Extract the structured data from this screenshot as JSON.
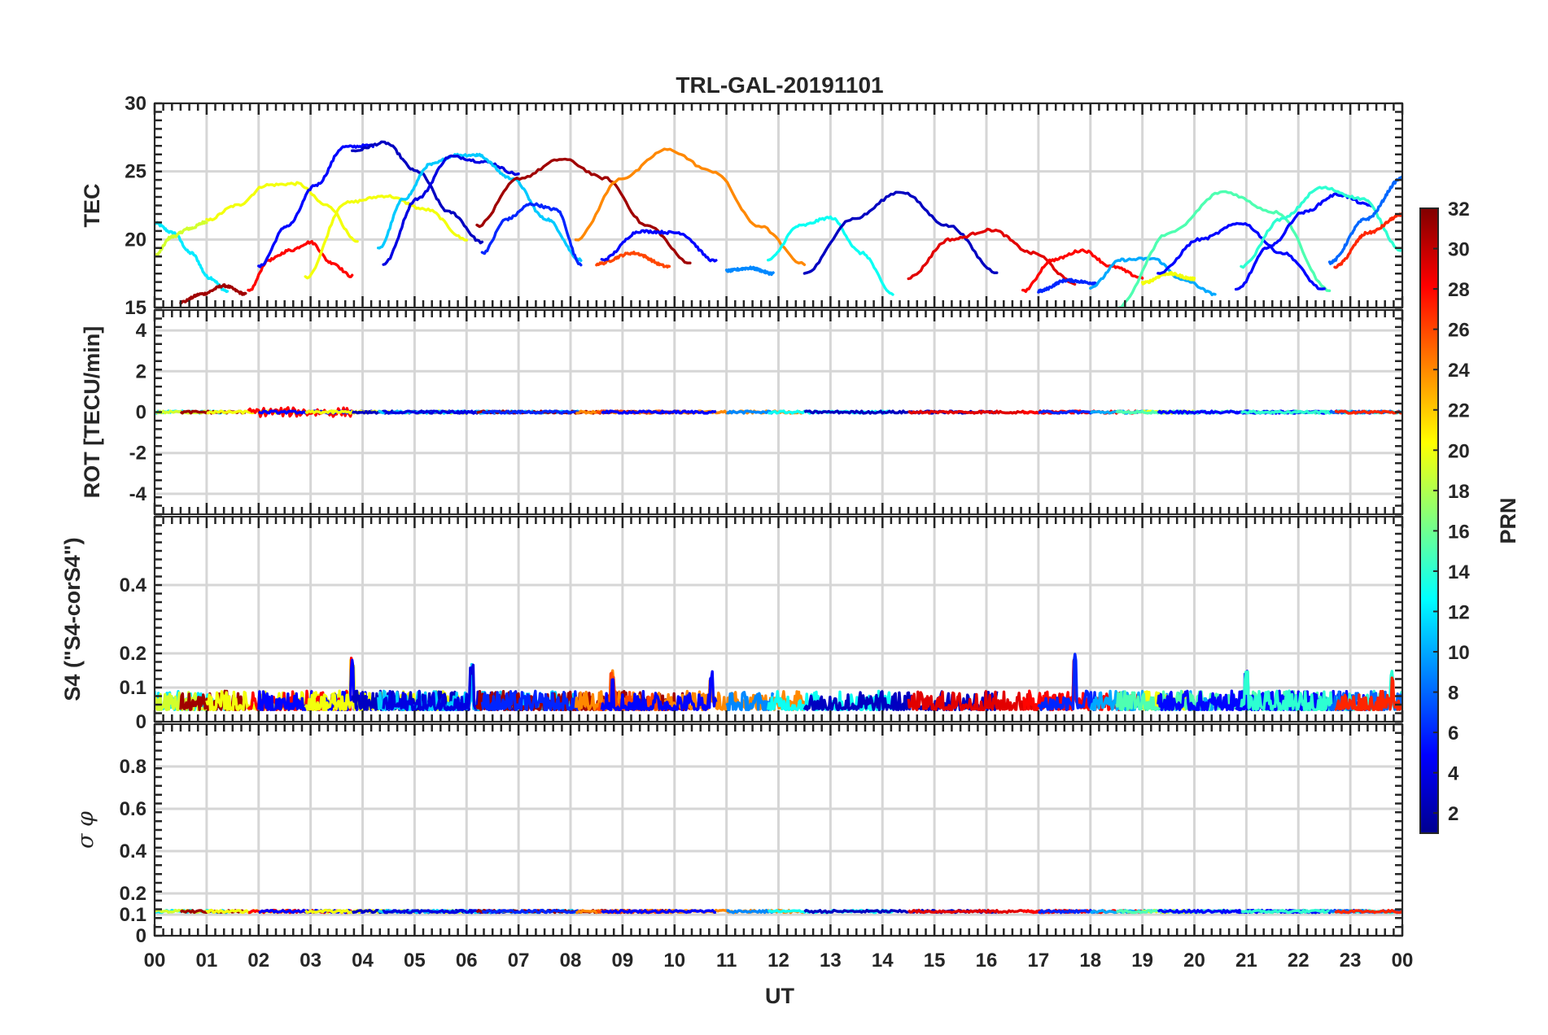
{
  "chart_data": {
    "type": "line",
    "title": "TRL-GAL-20191101",
    "xlabel": "UT",
    "x_ticks": [
      "00",
      "01",
      "02",
      "03",
      "04",
      "05",
      "06",
      "07",
      "08",
      "09",
      "10",
      "11",
      "12",
      "13",
      "14",
      "15",
      "16",
      "17",
      "18",
      "19",
      "20",
      "21",
      "22",
      "23",
      "00"
    ],
    "xlim": [
      0,
      24
    ],
    "colorbar": {
      "label": "PRN",
      "range": [
        1,
        32
      ],
      "ticks": [
        2,
        4,
        6,
        8,
        10,
        12,
        14,
        16,
        18,
        20,
        22,
        24,
        26,
        28,
        30,
        32
      ]
    },
    "panels": [
      {
        "id": "tec",
        "ylabel": "TEC",
        "ylim": [
          15,
          30
        ],
        "yticks": [
          15,
          20,
          25,
          30
        ],
        "passes": [
          {
            "prn": 12,
            "t0": 0.0,
            "t1": 1.4,
            "values": [
              21.2,
              20.5,
              19.0,
              17.2,
              16.2
            ]
          },
          {
            "prn": 19,
            "t0": 0.0,
            "t1": 1.0,
            "values": [
              18.8,
              20.2,
              20.8,
              21.3
            ]
          },
          {
            "prn": 31,
            "t0": 0.5,
            "t1": 1.75,
            "values": [
              15.4,
              16.0,
              16.6,
              16.0
            ]
          },
          {
            "prn": 20,
            "t0": 1.0,
            "t1": 3.9,
            "values": [
              21.4,
              22.5,
              24.0,
              24.1,
              22.5,
              19.8
            ]
          },
          {
            "prn": 28,
            "t0": 1.8,
            "t1": 3.8,
            "values": [
              16.2,
              18.5,
              19.2,
              19.8,
              18.3,
              17.3
            ]
          },
          {
            "prn": 5,
            "t0": 2.0,
            "t1": 4.2,
            "values": [
              18.0,
              21.0,
              24.0,
              26.8,
              26.9
            ]
          },
          {
            "prn": 20,
            "t0": 2.9,
            "t1": 6.0,
            "values": [
              17.2,
              22.7,
              23.2,
              22.2,
              20.0
            ]
          },
          {
            "prn": 3,
            "t0": 3.8,
            "t1": 6.3,
            "values": [
              26.5,
              27.1,
              25.0,
              22.0,
              19.8
            ]
          },
          {
            "prn": 11,
            "t0": 4.3,
            "t1": 6.3,
            "values": [
              19.3,
              23.0,
              25.5,
              26.2,
              26.2
            ]
          },
          {
            "prn": 4,
            "t0": 4.4,
            "t1": 7.0,
            "values": [
              18.2,
              23.0,
              26.1,
              25.7,
              24.8
            ]
          },
          {
            "prn": 11,
            "t0": 6.2,
            "t1": 8.2,
            "values": [
              26.2,
              24.5,
              21.5,
              18.5
            ]
          },
          {
            "prn": 31,
            "t0": 6.2,
            "t1": 10.3,
            "values": [
              21.0,
              24.5,
              25.9,
              24.5,
              21.0,
              18.3
            ]
          },
          {
            "prn": 6,
            "t0": 6.3,
            "t1": 8.2,
            "values": [
              19.0,
              21.5,
              22.6,
              22.2,
              18.2
            ]
          },
          {
            "prn": 24,
            "t0": 8.1,
            "t1": 12.5,
            "values": [
              20.0,
              24.5,
              26.6,
              25.0,
              21.0,
              18.2
            ]
          },
          {
            "prn": 26,
            "t0": 8.5,
            "t1": 9.9,
            "values": [
              18.2,
              19.0,
              18.0
            ]
          },
          {
            "prn": 5,
            "t0": 8.6,
            "t1": 10.8,
            "values": [
              18.5,
              20.6,
              20.5,
              18.4
            ]
          },
          {
            "prn": 9,
            "t0": 11.0,
            "t1": 11.9,
            "values": [
              17.7,
              17.9,
              17.5
            ]
          },
          {
            "prn": 13,
            "t0": 11.8,
            "t1": 14.2,
            "values": [
              18.5,
              21.0,
              21.6,
              19.0,
              16.0
            ]
          },
          {
            "prn": 3,
            "t0": 12.5,
            "t1": 16.2,
            "values": [
              17.5,
              21.5,
              23.5,
              21.0,
              17.6
            ]
          },
          {
            "prn": 29,
            "t0": 14.5,
            "t1": 17.7,
            "values": [
              17.2,
              20.0,
              20.7,
              19.0,
              16.8
            ]
          },
          {
            "prn": 28,
            "t0": 16.7,
            "t1": 19.0,
            "values": [
              16.2,
              18.5,
              19.2,
              18.0,
              17.2
            ]
          },
          {
            "prn": 6,
            "t0": 17.0,
            "t1": 18.1,
            "values": [
              16.2,
              17.0,
              16.8
            ]
          },
          {
            "prn": 10,
            "t0": 18.0,
            "t1": 20.4,
            "values": [
              16.5,
              18.5,
              18.6,
              17.0,
              16.0
            ]
          },
          {
            "prn": 20,
            "t0": 19.0,
            "t1": 20.0,
            "values": [
              16.8,
              17.5,
              17.1
            ]
          },
          {
            "prn": 15,
            "t0": 18.5,
            "t1": 22.6,
            "values": [
              15.0,
              20.5,
              23.5,
              22.0,
              16.3
            ]
          },
          {
            "prn": 5,
            "t0": 19.3,
            "t1": 22.5,
            "values": [
              17.5,
              20.0,
              21.2,
              19.0,
              16.3
            ]
          },
          {
            "prn": 5,
            "t0": 20.8,
            "t1": 23.4,
            "values": [
              16.3,
              19.5,
              22.0,
              23.3,
              22.5
            ]
          },
          {
            "prn": 14,
            "t0": 20.9,
            "t1": 24.0,
            "values": [
              18.0,
              21.5,
              23.8,
              23.0,
              19.2
            ]
          },
          {
            "prn": 8,
            "t0": 22.6,
            "t1": 24.0,
            "values": [
              18.3,
              21.5,
              24.5
            ]
          },
          {
            "prn": 27,
            "t0": 22.7,
            "t1": 24.0,
            "values": [
              18.0,
              20.5,
              21.8
            ]
          }
        ]
      },
      {
        "id": "rot",
        "ylabel": "ROT [TECU/min]",
        "ylim": [
          -5,
          5
        ],
        "yticks": [
          -4,
          -2,
          0,
          2,
          4
        ],
        "noise": {
          "base": 0,
          "amp": 0.12,
          "hot_window": [
            1.8,
            3.9
          ],
          "hot_amp": 0.45
        }
      },
      {
        "id": "s4",
        "ylabel": "S4 (\"S4-corS4\")",
        "ylim": [
          0,
          0.6
        ],
        "yticks": [
          0,
          0.1,
          0.2,
          0.4
        ],
        "noise": {
          "base": 0.035,
          "amp": 0.055,
          "spikes": [
            [
              3.8,
              0.19
            ],
            [
              6.1,
              0.17
            ],
            [
              8.8,
              0.15
            ],
            [
              10.7,
              0.15
            ],
            [
              17.7,
              0.21
            ],
            [
              21.0,
              0.15
            ],
            [
              23.8,
              0.15
            ]
          ]
        }
      },
      {
        "id": "sigma_phi",
        "ylabel": "σ φ",
        "ylim": [
          0,
          1
        ],
        "yticks": [
          0,
          0.1,
          0.2,
          0.4,
          0.6,
          0.8
        ],
        "noise": {
          "base": 0.115,
          "amp": 0.012
        }
      }
    ]
  }
}
